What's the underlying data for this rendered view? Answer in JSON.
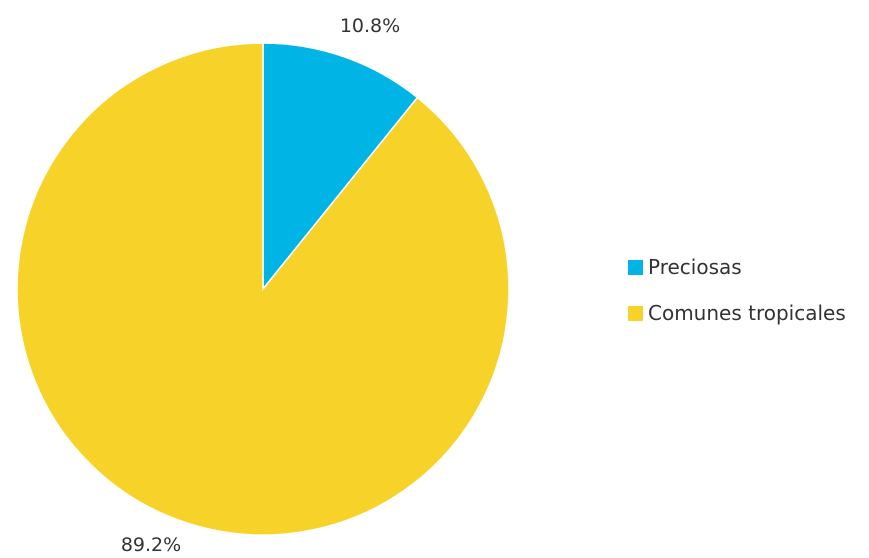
{
  "chart_data": {
    "type": "pie",
    "title": "",
    "slices": [
      {
        "name": "Preciosas",
        "value": 10.8,
        "label": "10.8%",
        "color": "#00B4E6"
      },
      {
        "name": "Comunes tropicales",
        "value": 89.2,
        "label": "89.2%",
        "color": "#F7D32A"
      }
    ],
    "legend_position": "right",
    "start_angle_deg": 0,
    "direction": "clockwise"
  }
}
